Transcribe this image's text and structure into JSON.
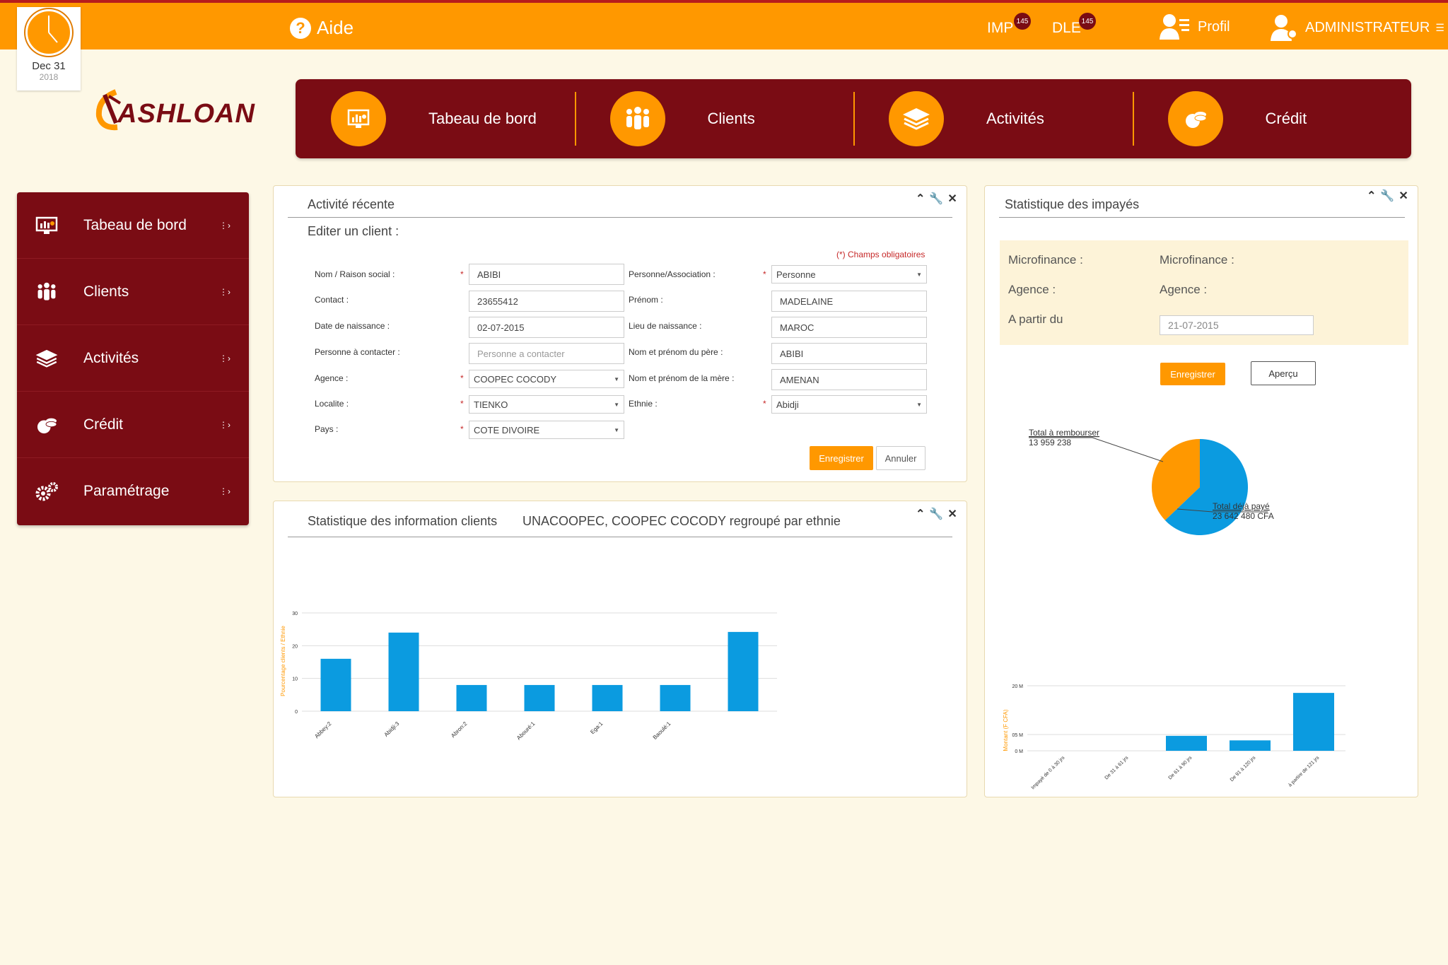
{
  "topbar": {
    "help_label": "Aide",
    "imp_label": "IMP",
    "imp_count": "145",
    "dle_label": "DLE",
    "dle_count": "145",
    "profile_label": "Profil",
    "admin_label": "ADMINISTRATEUR"
  },
  "calendar": {
    "month_day": "Dec 31",
    "year": "2018"
  },
  "logo": {
    "text": "ASHLOAN"
  },
  "topnav": [
    {
      "label": "Tabeau de bord",
      "icon": "dashboard-icon"
    },
    {
      "label": "Clients",
      "icon": "users-icon"
    },
    {
      "label": "Activités",
      "icon": "layers-icon"
    },
    {
      "label": "Crédit",
      "icon": "coins-icon"
    }
  ],
  "sidebar": [
    {
      "label": "Tabeau de bord",
      "icon": "dashboard-icon"
    },
    {
      "label": "Clients",
      "icon": "users-icon"
    },
    {
      "label": "Activités",
      "icon": "layers-icon"
    },
    {
      "label": "Crédit",
      "icon": "coins-icon"
    },
    {
      "label": "Paramétrage",
      "icon": "gears-icon"
    }
  ],
  "activity_panel": {
    "title": "Activité récente",
    "subtitle": "Editer un client :",
    "required_note": "(*) Champs obligatoires",
    "fields": {
      "nom_label": "Nom / Raison social :",
      "nom_value": "ABIBI",
      "contact_label": "Contact :",
      "contact_value": "23655412",
      "date_label": "Date de naissance :",
      "date_value": "02-07-2015",
      "personne_label": "Personne à contacter :",
      "personne_placeholder": "Personne a contacter",
      "agence_label": "Agence :",
      "agence_value": "COOPEC COCODY",
      "localite_label": "Localite :",
      "localite_value": "TIENKO",
      "pays_label": "Pays :",
      "pays_value": "COTE DIVOIRE",
      "assoc_label": "Personne/Association :",
      "assoc_value": "Personne",
      "prenom_label": "Prénom :",
      "prenom_value": "MADELAINE",
      "lieu_label": "Lieu de naissance :",
      "lieu_value": "MAROC",
      "pere_label": "Nom et prénom du père :",
      "pere_value": "ABIBI",
      "mere_label": "Nom et prénom de la mère :",
      "mere_value": "AMENAN",
      "ethnie_label": "Ethnie :",
      "ethnie_value": "Abidji"
    },
    "save_label": "Enregistrer",
    "cancel_label": "Annuler"
  },
  "clients_panel": {
    "title": "Statistique des information clients",
    "subtitle": "UNACOOPEC, COOPEC COCODY regroupé par ethnie"
  },
  "impayes_panel": {
    "title": "Statistique des impayés",
    "microfinance_label_1": "Microfinance :",
    "microfinance_label_2": "Microfinance :",
    "agence_label_1": "Agence :",
    "agence_label_2": "Agence :",
    "apartir_label": "A partir du",
    "date_value": "21-07-2015",
    "save_label": "Enregistrer",
    "preview_label": "Aperçu"
  },
  "chart_data": [
    {
      "type": "bar",
      "ylabel": "Pourcentage clients / Ethnie",
      "ylim": [
        0,
        30
      ],
      "yticks": [
        "0",
        "10",
        "20",
        "30"
      ],
      "categories": [
        "Abbey:2",
        "Abidji:3",
        "Abron:2",
        "Abouré:1",
        "Ega:1",
        "Baoulé:1",
        ""
      ],
      "values": [
        16,
        24,
        8,
        8,
        8,
        8,
        24.2
      ],
      "color": "#0b9be0"
    },
    {
      "type": "pie",
      "slices": [
        {
          "label": "Total à rembourser",
          "value_text": "13 959 238",
          "value": 13959238,
          "color": "#ff9800"
        },
        {
          "label": "Total déjà payé",
          "value_text": "23 642 480 CFA",
          "value": 23642480,
          "color": "#0b9be0"
        }
      ]
    },
    {
      "type": "bar",
      "ylabel": "Montant (F CFA)",
      "yticks": [
        "0 M",
        "05 M",
        "20 M"
      ],
      "ylim": [
        0,
        20
      ],
      "categories": [
        "Impayé de 0 à 30 jrs",
        "De 31 à 61 jrs",
        "De 61 à 90 jrs",
        "De 91 à 120 jrs",
        "à partire de 121 jrs"
      ],
      "values": [
        0,
        0,
        4.6,
        3.2,
        17.8
      ],
      "color": "#0b9be0"
    }
  ]
}
